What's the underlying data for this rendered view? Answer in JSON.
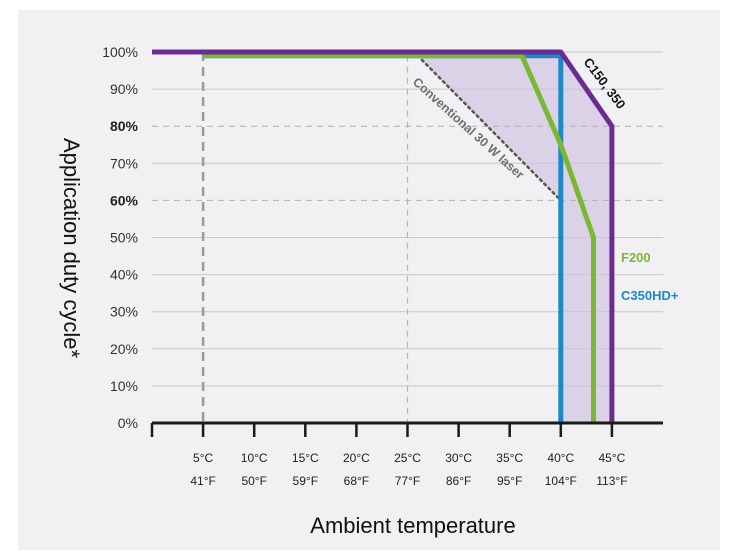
{
  "chart_data": {
    "type": "line",
    "title": "",
    "xlabel": "Ambient temperature",
    "ylabel": "Application duty cycle*",
    "ylim": [
      0,
      100
    ],
    "xlim": [
      0,
      45
    ],
    "y_ticks": [
      "0%",
      "10%",
      "20%",
      "30%",
      "40%",
      "50%",
      "60%",
      "70%",
      "80%",
      "90%",
      "100%"
    ],
    "y_ticks_bold": [
      "60%",
      "80%"
    ],
    "x_ticks": [
      {
        "c": "5°C",
        "f": "41°F"
      },
      {
        "c": "10°C",
        "f": "50°F"
      },
      {
        "c": "15°C",
        "f": "59°F"
      },
      {
        "c": "20°C",
        "f": "68°F"
      },
      {
        "c": "25°C",
        "f": "77°F"
      },
      {
        "c": "30°C",
        "f": "86°F"
      },
      {
        "c": "35°C",
        "f": "95°F"
      },
      {
        "c": "40°C",
        "f": "104°F"
      },
      {
        "c": "45°C",
        "f": "113°F"
      }
    ],
    "grid": true,
    "series": [
      {
        "name": "C150, 350",
        "color": "#6a2c91",
        "points": [
          [
            0,
            100
          ],
          [
            40,
            100
          ],
          [
            45,
            80
          ],
          [
            45,
            0
          ]
        ]
      },
      {
        "name": "F200",
        "color": "#7ab833",
        "points": [
          [
            5,
            99
          ],
          [
            36.2,
            99
          ],
          [
            40,
            75
          ],
          [
            43.2,
            50
          ],
          [
            43.2,
            0
          ]
        ]
      },
      {
        "name": "C350HD+",
        "color": "#1d88c4",
        "points": [
          [
            5,
            99
          ],
          [
            40,
            99
          ],
          [
            40,
            0
          ]
        ]
      },
      {
        "name": "Conventional 30 W laser",
        "color": "#555555",
        "dash": "dotted",
        "points": [
          [
            26,
            99
          ],
          [
            40,
            60
          ]
        ]
      }
    ],
    "shaded_region": {
      "color": "#c9b8df",
      "points": [
        [
          26,
          99
        ],
        [
          40,
          100
        ],
        [
          45,
          80
        ],
        [
          45,
          0
        ],
        [
          40,
          0
        ],
        [
          40,
          60
        ]
      ]
    }
  }
}
